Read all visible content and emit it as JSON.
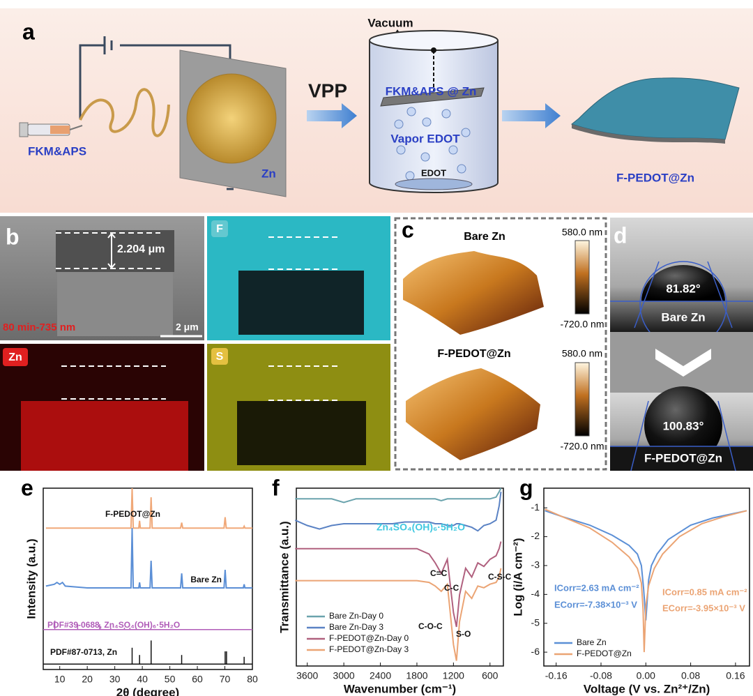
{
  "panels": {
    "a": {
      "label": "a",
      "syringe": "FKM&APS",
      "substrate": "Zn",
      "process": "VPP",
      "vacuum": "Vacuum",
      "plate": "FKM&APS @ Zn",
      "vapor": "Vapor EDOT",
      "source": "EDOT",
      "product": "F-PEDOT@Zn"
    },
    "b": {
      "label": "b",
      "thickness": "2.204 μm",
      "condition": "80 min-735 nm",
      "scale_bar": "2 μm",
      "maps": [
        "F",
        "Zn",
        "S"
      ]
    },
    "c": {
      "label": "c",
      "top": {
        "title": "Bare Zn",
        "max": "580.0 nm",
        "min": "-720.0 nm"
      },
      "bottom": {
        "title": "F-PEDOT@Zn",
        "max": "580.0 nm",
        "min": "-720.0 nm"
      }
    },
    "d": {
      "label": "d",
      "top": {
        "angle": "81.82°",
        "name": "Bare Zn"
      },
      "bottom": {
        "angle": "100.83°",
        "name": "F-PEDOT@Zn"
      }
    }
  },
  "chart_data": [
    {
      "type": "line",
      "panel": "e",
      "x_label": "2θ (degree)",
      "y_label": "Intensity (a.u.)",
      "xlim": [
        4,
        80
      ],
      "ylim": [
        0,
        100
      ],
      "xticks": [
        10,
        20,
        30,
        40,
        50,
        60,
        70,
        80
      ],
      "series": [
        {
          "name": "F-PEDOT@Zn",
          "color": "#f0a878",
          "x": [
            5,
            10,
            20,
            30,
            35.9,
            36.3,
            36.7,
            38.7,
            39,
            39.3,
            42.8,
            43.2,
            43.6,
            53.9,
            54.3,
            54.7,
            69.7,
            70.1,
            70.5,
            76.7,
            77,
            77.3,
            80
          ],
          "values": [
            78,
            78,
            78,
            78,
            78,
            100,
            78,
            78,
            82,
            78,
            78,
            95,
            78,
            78,
            81,
            78,
            78,
            84,
            78,
            78,
            79,
            78,
            78
          ]
        },
        {
          "name": "Bare Zn",
          "color": "#5b8fd6",
          "x": [
            5,
            8,
            9,
            10,
            11,
            12,
            20,
            30,
            35.9,
            36.3,
            36.7,
            38.7,
            39,
            39.3,
            42.8,
            43.2,
            43.6,
            53.9,
            54.3,
            54.7,
            69.7,
            70.1,
            70.5,
            76.7,
            77,
            77.3,
            80
          ],
          "values": [
            46,
            47,
            48,
            47,
            48,
            46,
            45,
            45,
            45,
            78,
            45,
            45,
            48,
            45,
            45,
            60,
            45,
            45,
            53,
            45,
            45,
            55,
            45,
            45,
            47,
            45,
            45
          ]
        },
        {
          "name": "PDF#39-0688, Zn₄SO₄(OH)₆·5H₂O",
          "color": "#b05cb8",
          "kind": "stick",
          "baseline": 22,
          "x": [
            8.2,
            16.5,
            24.5,
            28.5,
            33.5,
            35.5
          ],
          "values": [
            27,
            25,
            25,
            23,
            23,
            23
          ]
        },
        {
          "name": "PDF#87-0713, Zn",
          "color": "#111111",
          "kind": "stick",
          "baseline": 3,
          "x": [
            36.3,
            39,
            43.2,
            54.3,
            70.1,
            70.6,
            77
          ],
          "values": [
            12,
            8,
            16,
            8,
            10,
            10,
            7
          ]
        }
      ]
    },
    {
      "type": "line",
      "panel": "f",
      "x_label": "Wavenumber (cm⁻¹)",
      "y_label": "Transmittance (a.u.)",
      "xlim": [
        3780,
        380
      ],
      "ylim": [
        0,
        100
      ],
      "xticks": [
        3600,
        3000,
        2400,
        1800,
        1200,
        600
      ],
      "x": [
        3800,
        3600,
        3400,
        3200,
        3000,
        2800,
        2600,
        2400,
        2200,
        2000,
        1800,
        1600,
        1500,
        1400,
        1300,
        1200,
        1150,
        1100,
        1000,
        900,
        800,
        700,
        600,
        500,
        450,
        420
      ],
      "series": [
        {
          "name": "Bare Zn-Day 0",
          "color": "#6aa3ad",
          "values": [
            94,
            94,
            94,
            94,
            92,
            94,
            94,
            94,
            94,
            94,
            94,
            94,
            94,
            93,
            94,
            94,
            94,
            94,
            94,
            94,
            94,
            94,
            94,
            95,
            98,
            100
          ]
        },
        {
          "name": "Bare Zn-Day 3",
          "color": "#5a82c4",
          "values": [
            82,
            79,
            77,
            79,
            80,
            80,
            80,
            80,
            80,
            81,
            81,
            81,
            80,
            80,
            79,
            79,
            80,
            80,
            79,
            78,
            76,
            79,
            80,
            82,
            90,
            98
          ]
        },
        {
          "name": "F-PEDOT@Zn-Day 0",
          "color": "#b0607e",
          "values": [
            66,
            66,
            66,
            66,
            66,
            66,
            66,
            66,
            66,
            66,
            66,
            63,
            58,
            52,
            60,
            30,
            22,
            40,
            55,
            50,
            58,
            56,
            60,
            62,
            66,
            70
          ]
        },
        {
          "name": "F-PEDOT@Zn-Day 3",
          "color": "#eba474",
          "values": [
            48,
            48,
            48,
            48,
            48,
            48,
            48,
            48,
            48,
            48,
            48,
            47,
            45,
            42,
            46,
            12,
            3,
            25,
            42,
            38,
            45,
            44,
            46,
            47,
            50,
            55
          ]
        }
      ],
      "annotations": [
        "Zn₄SO₄(OH)₆·5H₂O",
        "C=C",
        "C-C",
        "C-S-C",
        "C-O-C",
        "S-O"
      ]
    },
    {
      "type": "line",
      "panel": "g",
      "x_label": "Voltage (V vs. Zn²⁺/Zn)",
      "y_label": "Log (i/A cm⁻²)",
      "xlim": [
        -0.182,
        0.185
      ],
      "ylim": [
        -6.48,
        -0.32
      ],
      "xticks": [
        -0.16,
        -0.08,
        {
          "value": 0,
          "label": "0.00"
        },
        0.08,
        0.16
      ],
      "yticks": [
        -1,
        -2,
        -3,
        -4,
        -5,
        -6
      ],
      "series": [
        {
          "name": "Bare Zn",
          "color": "#5b8fd6",
          "x": [
            -0.18,
            -0.15,
            -0.1,
            -0.06,
            -0.03,
            -0.015,
            -0.008,
            -0.004,
            0,
            0.005,
            0.01,
            0.02,
            0.04,
            0.08,
            0.12,
            0.18
          ],
          "values": [
            -1.1,
            -1.3,
            -1.6,
            -1.95,
            -2.3,
            -2.6,
            -3.0,
            -3.8,
            -4.9,
            -3.5,
            -3.0,
            -2.6,
            -2.1,
            -1.6,
            -1.35,
            -1.1
          ]
        },
        {
          "name": "F-PEDOT@Zn",
          "color": "#eba474",
          "x": [
            -0.18,
            -0.15,
            -0.1,
            -0.06,
            -0.03,
            -0.015,
            -0.008,
            -0.005,
            -0.003,
            0,
            0.005,
            0.015,
            0.03,
            0.06,
            0.1,
            0.14,
            0.18
          ],
          "values": [
            -1.05,
            -1.3,
            -1.7,
            -2.2,
            -2.7,
            -3.1,
            -3.6,
            -4.5,
            -6.0,
            -4.4,
            -3.7,
            -3.1,
            -2.6,
            -2.0,
            -1.55,
            -1.3,
            -1.1
          ]
        }
      ],
      "annotations": [
        "ICorr=2.63 mA cm⁻²",
        "ECorr=-7.38×10⁻³ V",
        "ICorr=0.85 mA cm⁻²",
        "ECorr=-3.95×10⁻³ V"
      ]
    }
  ]
}
